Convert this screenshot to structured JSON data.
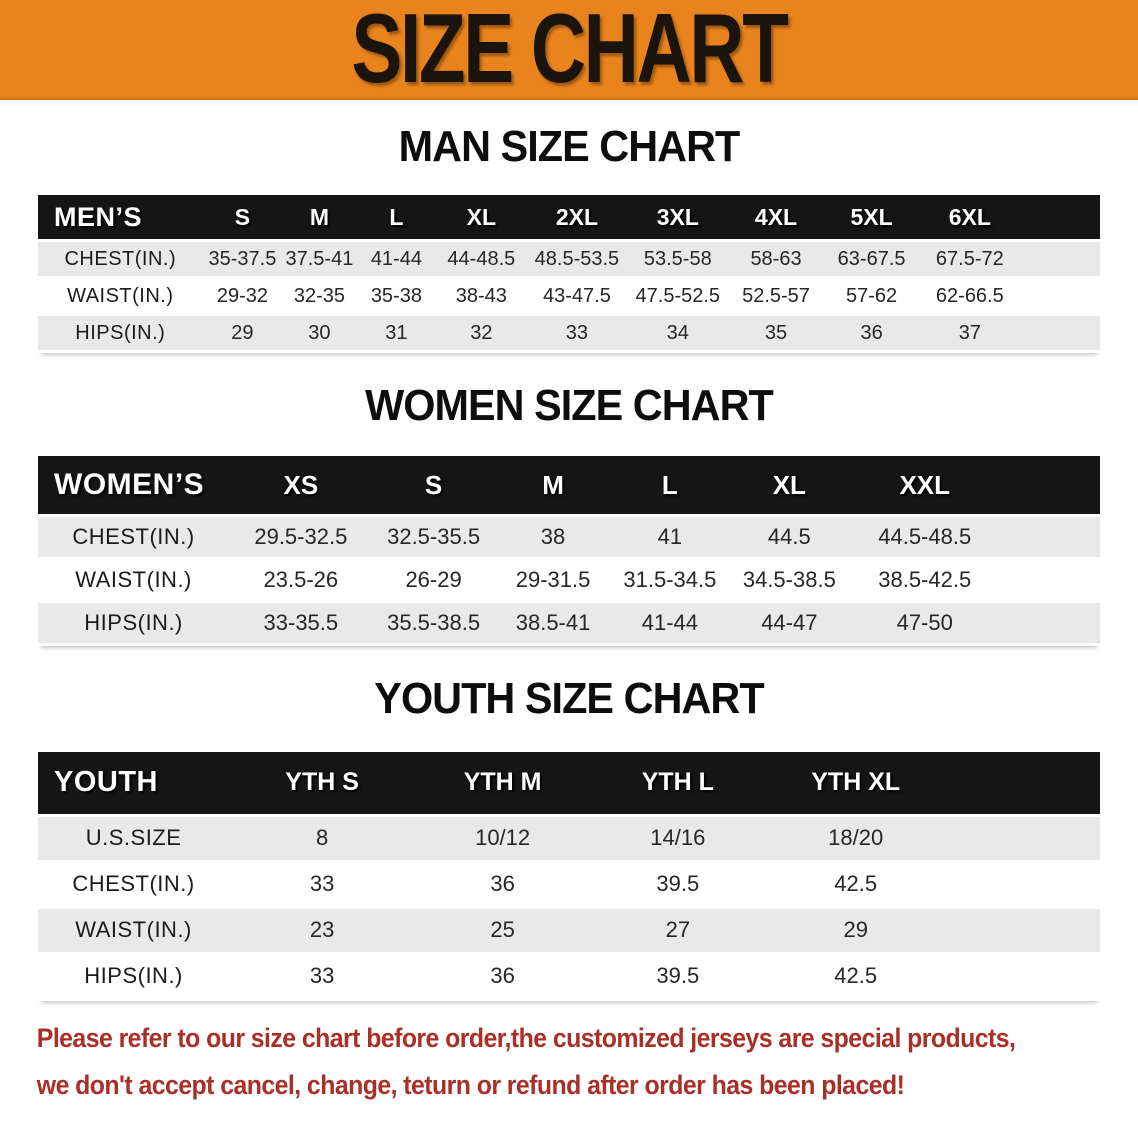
{
  "banner": {
    "title": "SIZE CHART",
    "bg_color": "#E8831D",
    "text_color": "#1A140C"
  },
  "sections": [
    {
      "id": "men",
      "title": "MAN SIZE CHART",
      "header_label": "MEN’S",
      "sizes": [
        "S",
        "M",
        "L",
        "XL",
        "2XL",
        "3XL",
        "4XL",
        "5XL",
        "6XL"
      ],
      "rows": [
        {
          "label": "CHEST(IN.)",
          "values": [
            "35-37.5",
            "37.5-41",
            "41-44",
            "44-48.5",
            "48.5-53.5",
            "53.5-58",
            "58-63",
            "63-67.5",
            "67.5-72"
          ]
        },
        {
          "label": "WAIST(IN.)",
          "values": [
            "29-32",
            "32-35",
            "35-38",
            "38-43",
            "43-47.5",
            "47.5-52.5",
            "52.5-57",
            "57-62",
            "62-66.5"
          ]
        },
        {
          "label": "HIPS(IN.)",
          "values": [
            "29",
            "30",
            "31",
            "32",
            "33",
            "34",
            "35",
            "36",
            "37"
          ]
        }
      ]
    },
    {
      "id": "women",
      "title": "WOMEN SIZE CHART",
      "header_label": "WOMEN’S",
      "sizes": [
        "XS",
        "S",
        "M",
        "L",
        "XL",
        "XXL"
      ],
      "rows": [
        {
          "label": "CHEST(IN.)",
          "values": [
            "29.5-32.5",
            "32.5-35.5",
            "38",
            "41",
            "44.5",
            "44.5-48.5"
          ]
        },
        {
          "label": "WAIST(IN.)",
          "values": [
            "23.5-26",
            "26-29",
            "29-31.5",
            "31.5-34.5",
            "34.5-38.5",
            "38.5-42.5"
          ]
        },
        {
          "label": "HIPS(IN.)",
          "values": [
            "33-35.5",
            "35.5-38.5",
            "38.5-41",
            "41-44",
            "44-47",
            "47-50"
          ]
        }
      ]
    },
    {
      "id": "youth",
      "title": "YOUTH SIZE CHART",
      "header_label": "YOUTH",
      "sizes": [
        "YTH S",
        "YTH M",
        "YTH L",
        "YTH XL"
      ],
      "rows": [
        {
          "label": "U.S.SIZE",
          "values": [
            "8",
            "10/12",
            "14/16",
            "18/20"
          ]
        },
        {
          "label": "CHEST(IN.)",
          "values": [
            "33",
            "36",
            "39.5",
            "42.5"
          ]
        },
        {
          "label": "WAIST(IN.)",
          "values": [
            "23",
            "25",
            "27",
            "29"
          ]
        },
        {
          "label": "HIPS(IN.)",
          "values": [
            "33",
            "36",
            "39.5",
            "42.5"
          ]
        }
      ]
    }
  ],
  "footnote": {
    "line1": "Please refer to our size chart before order,the customized jerseys are special products,",
    "line2": "we don't accept cancel, change, teturn or refund after order has been placed!",
    "color": "#A93028"
  }
}
